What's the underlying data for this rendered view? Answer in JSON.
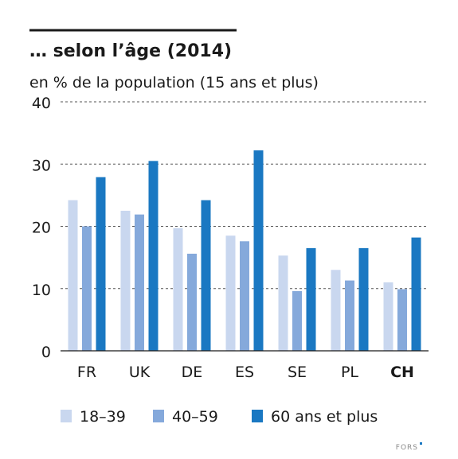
{
  "chart_data": {
    "type": "bar",
    "title": "… selon l’âge (2014)",
    "subtitle": "en % de la population (15 ans et plus)",
    "categories": [
      "FR",
      "UK",
      "DE",
      "ES",
      "SE",
      "PL",
      "CH"
    ],
    "highlight_category": "CH",
    "series": [
      {
        "name": "18–39",
        "color": "#c9d7ef",
        "values": [
          24.2,
          22.5,
          19.7,
          18.5,
          15.3,
          13.0,
          11.0
        ]
      },
      {
        "name": "40–59",
        "color": "#85a9db",
        "values": [
          20.0,
          21.9,
          15.6,
          17.6,
          9.6,
          11.3,
          9.9
        ]
      },
      {
        "name": "60 ans et plus",
        "color": "#1a78c2",
        "values": [
          27.9,
          30.5,
          24.2,
          32.2,
          16.5,
          16.5,
          18.2
        ]
      }
    ],
    "yticks": [
      0,
      10,
      20,
      30,
      40
    ],
    "ylim": [
      0,
      40
    ],
    "grid": true,
    "legend_position": "bottom"
  },
  "footer": {
    "logo_text": "FORS"
  }
}
